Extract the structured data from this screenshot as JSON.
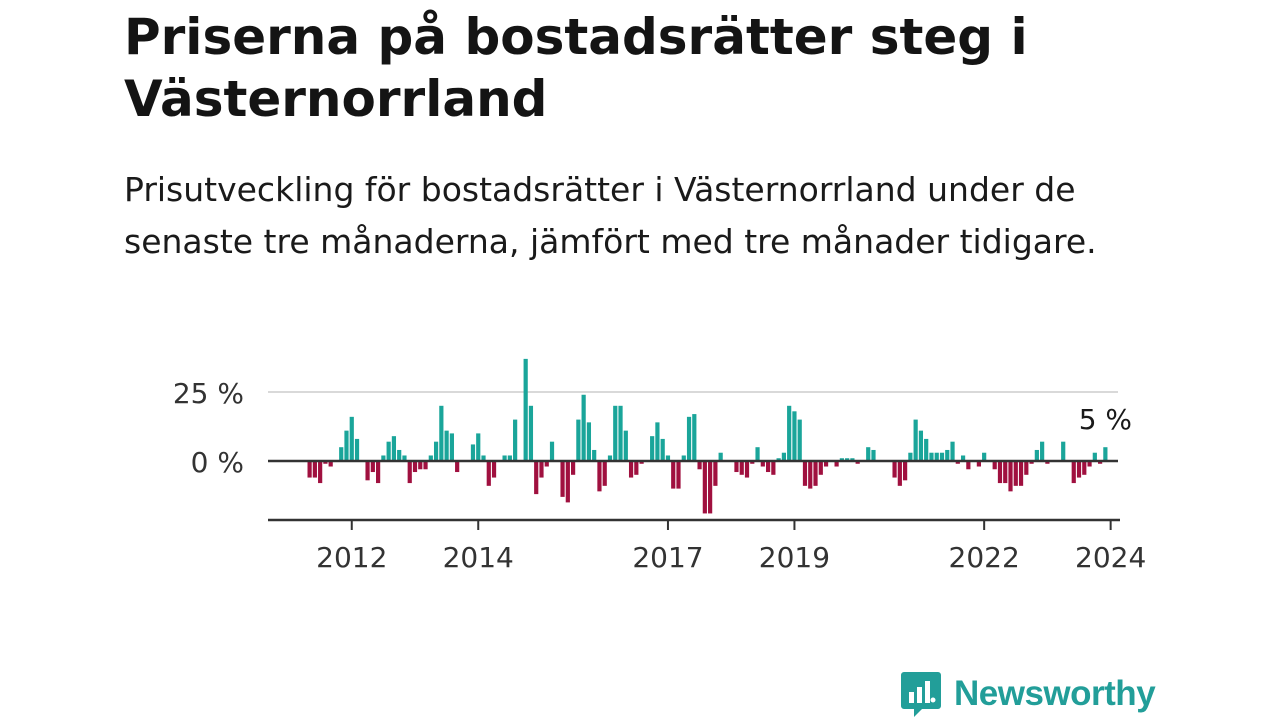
{
  "title": "Priserna på bostadsrätter steg i Västernorrland",
  "subtitle": "Prisutveckling för bostadsrätter i Västernorrland under de senaste tre månaderna, jämfört med tre månader tidigare.",
  "brand": {
    "name": "Newsworthy",
    "icon": "newsworthy-chart-bubble-icon",
    "color": "#229e99"
  },
  "colors": {
    "positive": "#1aa59a",
    "negative": "#a0103f",
    "grid": "#d9d9d9",
    "zero_line": "#333333",
    "axis": "#333333"
  },
  "chart_data": {
    "type": "bar",
    "title": "",
    "xlabel": "",
    "ylabel": "",
    "ylim": [
      -20,
      38
    ],
    "y_ticks": [
      0,
      25
    ],
    "y_tick_labels": [
      "0 %",
      "25 %"
    ],
    "x_ticks": [
      "2012",
      "2014",
      "2017",
      "2019",
      "2022",
      "2024"
    ],
    "grid": true,
    "start": "2011-05",
    "frequency": "monthly",
    "annotation": {
      "text": "5 %"
    },
    "values": [
      -6,
      -6,
      -8,
      -1,
      -2,
      0,
      5,
      11,
      16,
      8,
      0,
      -7,
      -4,
      -8,
      2,
      7,
      9,
      4,
      2,
      -8,
      -4,
      -3,
      -3,
      2,
      7,
      20,
      11,
      10,
      -4,
      0,
      0,
      6,
      10,
      2,
      -9,
      -6,
      0,
      2,
      2,
      15,
      0,
      37,
      20,
      -12,
      -6,
      -2,
      7,
      0,
      -13,
      -15,
      -5,
      15,
      24,
      14,
      4,
      -11,
      -9,
      2,
      20,
      20,
      11,
      -6,
      -5,
      -1,
      0,
      9,
      14,
      8,
      2,
      -10,
      -10,
      2,
      16,
      17,
      -3,
      -19,
      -19,
      -9,
      3,
      0,
      0,
      -4,
      -5,
      -6,
      -1,
      5,
      -2,
      -4,
      -5,
      1,
      3,
      20,
      18,
      15,
      -9,
      -10,
      -9,
      -5,
      -2,
      0,
      -2,
      1,
      1,
      1,
      -1,
      0,
      5,
      4,
      0,
      0,
      0,
      -6,
      -9,
      -7,
      3,
      15,
      11,
      8,
      3,
      3,
      3,
      4,
      7,
      -1,
      2,
      -3,
      0,
      -2,
      3,
      0,
      -3,
      -8,
      -8,
      -11,
      -9,
      -9,
      -5,
      -1,
      4,
      7,
      -1,
      0,
      0,
      7,
      0,
      -8,
      -6,
      -5,
      -2,
      3,
      -1,
      5
    ]
  }
}
